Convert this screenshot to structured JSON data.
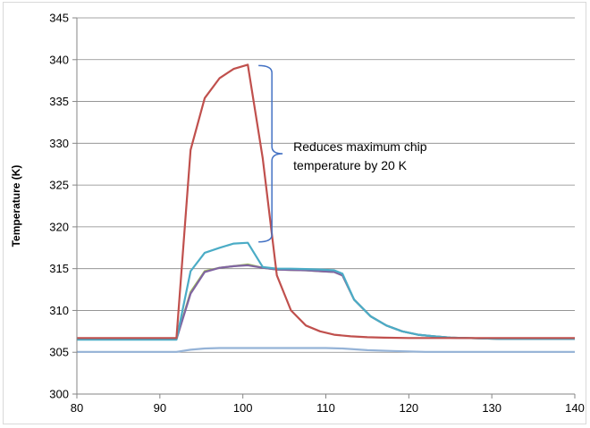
{
  "chart_data": {
    "type": "line",
    "title": "",
    "xlabel": "",
    "ylabel": "Temperature (K)",
    "xlim": [
      80,
      140
    ],
    "ylim": [
      300,
      345
    ],
    "xticks": [
      80,
      90,
      100,
      110,
      120,
      130,
      140
    ],
    "yticks": [
      300,
      305,
      310,
      315,
      320,
      325,
      330,
      335,
      340,
      345
    ],
    "grid": "horizontal",
    "legend": "none",
    "annotation": {
      "lines": [
        "Reduces maximum chip",
        "temperature by 20 K"
      ],
      "bracket_x": 103.5,
      "bracket_y_range": [
        318.2,
        339.3
      ],
      "color": "#4472c4"
    },
    "series": [
      {
        "color": "#9bbb59",
        "x": [
          80,
          92,
          93.7,
          95.4,
          97.2,
          98.9,
          100.6,
          102.4,
          104.1,
          105.8,
          107.6,
          109.3,
          111,
          112,
          113.4,
          115.4,
          117.3,
          119.2,
          121.1,
          123,
          125,
          127,
          129,
          131,
          140
        ],
        "y": [
          306.6,
          306.6,
          312.2,
          314.7,
          315.1,
          315.3,
          315.5,
          315.1,
          314.9,
          314.85,
          314.8,
          314.7,
          314.6,
          314.2,
          311.3,
          309.3,
          308.2,
          307.5,
          307.1,
          306.9,
          306.75,
          306.7,
          306.65,
          306.6,
          306.6
        ]
      },
      {
        "color": "#8064a2",
        "x": [
          80,
          92,
          93.7,
          95.4,
          97.2,
          98.9,
          100.6,
          102.4,
          104.1,
          105.8,
          107.6,
          109.3,
          111,
          112,
          113.4,
          115.4,
          117.3,
          119.2,
          121.1,
          123,
          125,
          127,
          129,
          131,
          140
        ],
        "y": [
          306.55,
          306.55,
          312,
          314.6,
          315.1,
          315.3,
          315.4,
          315.1,
          314.9,
          314.85,
          314.8,
          314.7,
          314.6,
          314.2,
          311.3,
          309.3,
          308.2,
          307.5,
          307.1,
          306.9,
          306.75,
          306.7,
          306.65,
          306.6,
          306.6
        ]
      },
      {
        "color": "#4bacc6",
        "x": [
          80,
          92,
          93.7,
          95.4,
          97.2,
          98.9,
          100.6,
          102.4,
          104.1,
          105.8,
          107.6,
          109.3,
          111,
          112,
          113.4,
          115.4,
          117.3,
          119.2,
          121.1,
          123,
          125,
          127,
          129,
          131,
          140
        ],
        "y": [
          306.5,
          306.5,
          314.7,
          316.9,
          317.5,
          318,
          318.1,
          315.2,
          315,
          315,
          314.95,
          314.9,
          314.8,
          314.4,
          311.3,
          309.3,
          308.2,
          307.5,
          307.1,
          306.9,
          306.75,
          306.7,
          306.65,
          306.6,
          306.6
        ]
      },
      {
        "color": "#95b3d7",
        "x": [
          80,
          92,
          93.7,
          95.4,
          97.2,
          100,
          105,
          110,
          112,
          115,
          118,
          122,
          140
        ],
        "y": [
          305.05,
          305.05,
          305.3,
          305.45,
          305.5,
          305.5,
          305.5,
          305.5,
          305.45,
          305.25,
          305.15,
          305.05,
          305.05
        ]
      },
      {
        "color": "#c0504d",
        "x": [
          80,
          92,
          93.7,
          95.4,
          97.2,
          98.9,
          100.6,
          102.4,
          104.1,
          105.8,
          107.6,
          109.3,
          111,
          113,
          115,
          117,
          120,
          125,
          130,
          140
        ],
        "y": [
          306.7,
          306.7,
          329.2,
          335.4,
          337.8,
          338.9,
          339.4,
          328.2,
          314.2,
          310,
          308.2,
          307.5,
          307.1,
          306.9,
          306.8,
          306.75,
          306.7,
          306.7,
          306.7,
          306.7
        ]
      }
    ]
  }
}
